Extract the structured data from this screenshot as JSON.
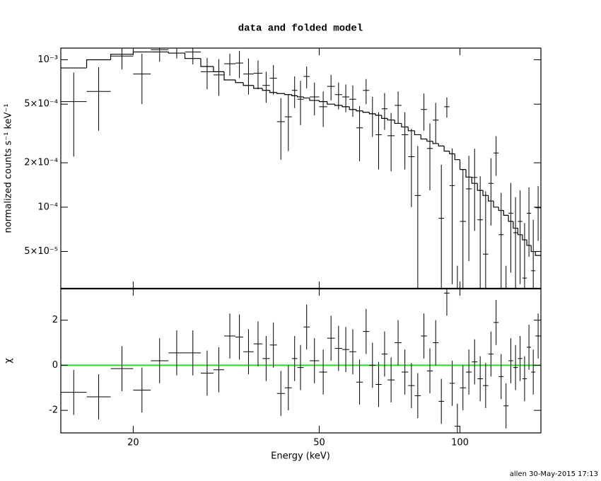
{
  "chart_data": {
    "type": "errorbar",
    "title": "data and folded model",
    "xlabel": "Energy (keV)",
    "footer": "allen 30-May-2015 17:13",
    "xlog": true,
    "xlim": [
      14,
      149
    ],
    "xticks": [
      20,
      50,
      100
    ],
    "bins": [
      14,
      15.9,
      17.9,
      20,
      21.8,
      23.8,
      25.8,
      27.9,
      29.7,
      31.3,
      33.1,
      34.4,
      36.2,
      37.8,
      39.2,
      40.6,
      42.2,
      43.7,
      44.9,
      46.3,
      47.7,
      50,
      52,
      54,
      56,
      58,
      60,
      62,
      64,
      66,
      68,
      70,
      72.5,
      75,
      77.5,
      80,
      82.5,
      85,
      87.5,
      90,
      92.5,
      95,
      97.5,
      100,
      103,
      106,
      109,
      112,
      115,
      118,
      121,
      124,
      127,
      130,
      133,
      136,
      139,
      142,
      145,
      149
    ],
    "color": "#000000",
    "panels": [
      {
        "ylabel": "normalized counts s⁻¹ keV⁻¹",
        "log": true,
        "ylim": [
          2.8e-05,
          0.0012
        ],
        "yticks": [
          {
            "value": 0.001,
            "label": "10⁻³"
          },
          {
            "value": 0.0005,
            "label": "5×10⁻⁴"
          },
          {
            "value": 0.0002,
            "label": "2×10⁻⁴"
          },
          {
            "value": 0.0001,
            "label": "10⁻⁴"
          },
          {
            "value": 5e-05,
            "label": "5×10⁻⁵"
          }
        ],
        "values": [
          0.00052,
          0.00061,
          0.00106,
          0.0008,
          0.00117,
          0.00122,
          0.00113,
          0.00083,
          0.00079,
          0.00094,
          0.00095,
          0.0008,
          0.00081,
          0.00067,
          0.00075,
          0.00038,
          0.00041,
          0.00062,
          0.00054,
          0.00077,
          0.00056,
          0.00048,
          0.00066,
          0.00058,
          0.00056,
          0.00054,
          0.000345,
          0.00062,
          0.00043,
          0.00031,
          0.000465,
          0.000305,
          0.00049,
          0.00031,
          0.00022,
          0.00012,
          0.00046,
          0.00025,
          0.00039,
          8.4e-05,
          0.00048,
          0.00014,
          -6e-05,
          8e-05,
          0.000133,
          0.000159,
          8.2e-05,
          4.8e-05,
          0.000145,
          0.000233,
          6.5e-05,
          -2e-05,
          9.1e-05,
          6.7e-05,
          8e-05,
          3.3e-05,
          9.1e-05,
          3.7e-05,
          9.9e-05
        ],
        "errors": [
          0.0003,
          0.00028,
          0.0002,
          0.0003,
          0.0002,
          0.0002,
          0.0002,
          0.0002,
          0.00022,
          0.00016,
          0.0002,
          0.00022,
          0.00018,
          0.00016,
          0.00017,
          0.00017,
          0.00017,
          0.00015,
          0.00018,
          0.00013,
          0.00014,
          0.00013,
          0.00013,
          0.00012,
          0.00012,
          0.00013,
          0.00014,
          0.00012,
          0.00013,
          0.00013,
          0.00013,
          0.00013,
          0.00012,
          0.00013,
          0.00012,
          0.00014,
          0.00013,
          0.00012,
          0.00012,
          0.00011,
          7.5e-05,
          0.00011,
          0.0001,
          0.0001,
          9e-05,
          9e-05,
          8e-05,
          8e-05,
          7e-05,
          7e-05,
          6e-05,
          6e-05,
          5.5e-05,
          5e-05,
          5e-05,
          4.5e-05,
          4.5e-05,
          4.5e-05,
          4e-05
        ],
        "model": [
          0.00088,
          0.001,
          0.00109,
          0.00113,
          0.00113,
          0.00111,
          0.00102,
          0.0009,
          0.00083,
          0.00073,
          0.0007,
          0.00067,
          0.00064,
          0.00062,
          0.0006,
          0.00059,
          0.00058,
          0.00057,
          0.00056,
          0.00055,
          0.00053,
          0.00052,
          0.0005,
          0.00049,
          0.00048,
          0.00046,
          0.00045,
          0.00044,
          0.00043,
          0.00042,
          0.0004,
          0.00039,
          0.00037,
          0.00035,
          0.00033,
          0.00031,
          0.00029,
          0.00028,
          0.00027,
          0.00026,
          0.00024,
          0.00023,
          0.00021,
          0.00018,
          0.00016,
          0.000145,
          0.00013,
          0.00012,
          0.00011,
          0.0001,
          9.5e-05,
          8.8e-05,
          8e-05,
          7.2e-05,
          6.5e-05,
          6e-05,
          5.5e-05,
          5e-05,
          4.7e-05
        ],
        "model_color": "#000000"
      },
      {
        "ylabel": "χ",
        "log": false,
        "ylim": [
          -3,
          3.4
        ],
        "yticks": [
          -2,
          0,
          2
        ],
        "values": [
          -1.2,
          -1.4,
          -0.15,
          -1.1,
          0.2,
          0.55,
          0.55,
          -0.35,
          -0.2,
          1.3,
          1.25,
          0.6,
          0.95,
          0.3,
          0.9,
          -1.25,
          -1.0,
          0.3,
          -0.1,
          1.7,
          0.2,
          -0.3,
          1.2,
          0.75,
          0.7,
          0.6,
          -0.75,
          1.5,
          0.0,
          -0.85,
          0.5,
          -0.65,
          1.0,
          -0.3,
          -0.9,
          -1.35,
          1.3,
          -0.25,
          1.0,
          -1.6,
          3.2,
          -0.8,
          -2.7,
          -1.0,
          -0.3,
          0.15,
          -0.6,
          -0.9,
          0.5,
          1.9,
          -0.5,
          -1.8,
          0.2,
          -0.1,
          0.3,
          -0.6,
          0.8,
          -0.3,
          1.3
        ],
        "errors": [
          1,
          1,
          1,
          1,
          1,
          1,
          1,
          1,
          1,
          1,
          1,
          1,
          1,
          1,
          1,
          1,
          1,
          1,
          1,
          1,
          1,
          1,
          1,
          1,
          1,
          1,
          1,
          1,
          1,
          1,
          1,
          1,
          1,
          1,
          1,
          1,
          1,
          1,
          1,
          1,
          1,
          1,
          1,
          1,
          1,
          1,
          1,
          1,
          1,
          1,
          1,
          1,
          1,
          1,
          1,
          1,
          1,
          1,
          1
        ],
        "baseline": 0,
        "baseline_color": "#22dd22"
      }
    ]
  }
}
